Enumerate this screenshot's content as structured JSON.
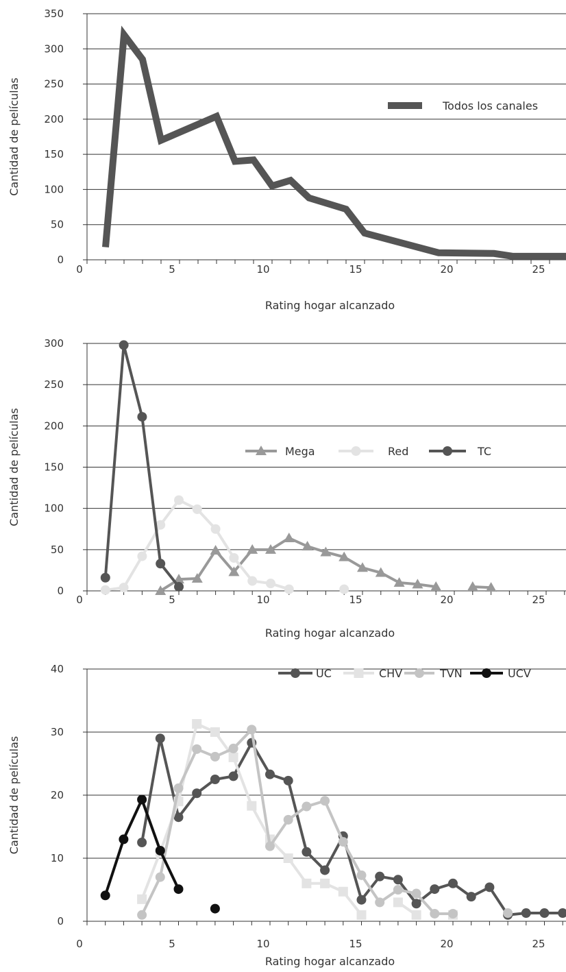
{
  "chart_data": [
    {
      "type": "line",
      "title": "",
      "xlabel": "Rating hogar alcanzado",
      "ylabel": "Cantidad de películas",
      "xlim": [
        0,
        26
      ],
      "ylim": [
        0,
        350
      ],
      "x_ticks": [
        "0",
        "5",
        "10",
        "15",
        "20",
        "25"
      ],
      "y_ticks": [
        "0",
        "50",
        "100",
        "150",
        "200",
        "250",
        "300",
        "350"
      ],
      "grid": "horizontal",
      "legend_position": "right",
      "series": [
        {
          "name": "Todos los canales",
          "color": "#555555",
          "marker": "none",
          "points": [
            [
              1,
              18
            ],
            [
              2,
              320
            ],
            [
              3,
              285
            ],
            [
              4,
              170
            ],
            [
              7,
              204
            ],
            [
              8,
              140
            ],
            [
              9,
              142
            ],
            [
              10,
              105
            ],
            [
              11,
              113
            ],
            [
              12,
              88
            ],
            [
              14,
              72
            ],
            [
              15,
              38
            ],
            [
              19,
              10
            ],
            [
              22,
              9
            ],
            [
              23,
              5
            ],
            [
              26,
              5
            ]
          ]
        }
      ]
    },
    {
      "type": "line",
      "title": "",
      "xlabel": "Rating hogar alcanzado",
      "ylabel": "Cantidad de películas",
      "xlim": [
        0,
        26
      ],
      "ylim": [
        0,
        300
      ],
      "x_ticks": [
        "0",
        "5",
        "10",
        "15",
        "20",
        "25"
      ],
      "y_ticks": [
        "0",
        "50",
        "100",
        "150",
        "200",
        "250",
        "300"
      ],
      "grid": "horizontal",
      "legend_position": "center-right",
      "series": [
        {
          "name": "Mega",
          "color": "#999999",
          "marker": "triangle",
          "points": [
            [
              4,
              0
            ],
            [
              5,
              14
            ],
            [
              6,
              15
            ],
            [
              7,
              49
            ],
            [
              8,
              23
            ],
            [
              9,
              50
            ],
            [
              10,
              50
            ],
            [
              11,
              64
            ],
            [
              12,
              54
            ],
            [
              13,
              47
            ],
            [
              14,
              41
            ],
            [
              15,
              28
            ],
            [
              16,
              22
            ],
            [
              17,
              10
            ],
            [
              18,
              8
            ],
            [
              19,
              5
            ],
            null,
            [
              21,
              5
            ],
            [
              22,
              4
            ]
          ]
        },
        {
          "name": "Red",
          "color": "#e3e3e3",
          "marker": "circle",
          "points": [
            [
              1,
              1
            ],
            [
              2,
              4
            ],
            [
              3,
              42
            ],
            [
              4,
              80
            ],
            [
              5,
              110
            ],
            [
              6,
              99
            ],
            [
              7,
              75
            ],
            [
              8,
              40
            ],
            [
              9,
              12
            ],
            [
              10,
              9
            ],
            [
              11,
              2
            ],
            null,
            [
              14,
              2
            ]
          ]
        },
        {
          "name": "TC",
          "color": "#555555",
          "marker": "circle",
          "points": [
            [
              1,
              16
            ],
            [
              2,
              298
            ],
            [
              3,
              211
            ],
            [
              4,
              33
            ],
            [
              5,
              5
            ]
          ]
        }
      ]
    },
    {
      "type": "line",
      "title": "",
      "xlabel": "Rating hogar alcanzado",
      "ylabel": "Cantidad de películas",
      "xlim": [
        0,
        26
      ],
      "ylim": [
        0,
        40
      ],
      "x_ticks": [
        "0",
        "5",
        "10",
        "15",
        "20",
        "25"
      ],
      "y_ticks": [
        "0",
        "10",
        "20",
        "30",
        "40"
      ],
      "grid": "horizontal",
      "legend_position": "top-right",
      "series": [
        {
          "name": "UC",
          "color": "#555555",
          "marker": "circle",
          "points": [
            [
              3,
              12.5
            ],
            [
              4,
              29
            ],
            [
              5,
              16.5
            ],
            [
              6,
              20.3
            ],
            [
              7,
              22.5
            ],
            [
              8,
              23
            ],
            [
              9,
              28.3
            ],
            [
              10,
              23.3
            ],
            [
              11,
              22.3
            ],
            [
              12,
              11
            ],
            [
              13,
              8.1
            ],
            [
              14,
              13.5
            ],
            [
              15,
              3.4
            ],
            [
              16,
              7.1
            ],
            [
              17,
              6.6
            ],
            [
              18,
              2.8
            ],
            [
              19,
              5.1
            ],
            [
              20,
              6
            ],
            [
              21,
              3.9
            ],
            [
              22,
              5.4
            ],
            [
              23,
              1
            ],
            [
              24,
              1.3
            ],
            [
              25,
              1.3
            ],
            [
              26,
              1.3
            ]
          ]
        },
        {
          "name": "CHV",
          "color": "#e3e3e3",
          "marker": "square",
          "points": [
            [
              3,
              3.5
            ],
            [
              4,
              11
            ],
            [
              5,
              19
            ],
            [
              6,
              31.3
            ],
            [
              7,
              30
            ],
            [
              8,
              26
            ],
            [
              9,
              18.3
            ],
            [
              10,
              13
            ],
            [
              11,
              10
            ],
            [
              12,
              6
            ],
            [
              13,
              6
            ],
            [
              14,
              4.7
            ],
            [
              15,
              1
            ],
            null,
            [
              17,
              3
            ],
            [
              18,
              1
            ],
            null,
            [
              20,
              1
            ]
          ]
        },
        {
          "name": "TVN",
          "color": "#c4c4c4",
          "marker": "circle",
          "points": [
            [
              3,
              1
            ],
            [
              4,
              7
            ],
            [
              5,
              21.1
            ],
            [
              6,
              27.3
            ],
            [
              7,
              26.1
            ],
            [
              8,
              27.4
            ],
            [
              9,
              30.4
            ],
            [
              10,
              11.9
            ],
            [
              11,
              16.1
            ],
            [
              12,
              18.2
            ],
            [
              13,
              19.1
            ],
            [
              14,
              12.6
            ],
            [
              15,
              7.3
            ],
            [
              16,
              3
            ],
            [
              17,
              5
            ],
            [
              18,
              4.4
            ],
            [
              19,
              1.2
            ],
            [
              20,
              1.2
            ],
            null,
            [
              23,
              1.3
            ]
          ]
        },
        {
          "name": "UCV",
          "color": "#111111",
          "marker": "circle",
          "points": [
            [
              1,
              4.1
            ],
            [
              2,
              13
            ],
            [
              3,
              19.3
            ],
            [
              4,
              11.2
            ],
            [
              5,
              5.1
            ],
            null,
            [
              7,
              2
            ]
          ]
        }
      ]
    }
  ]
}
